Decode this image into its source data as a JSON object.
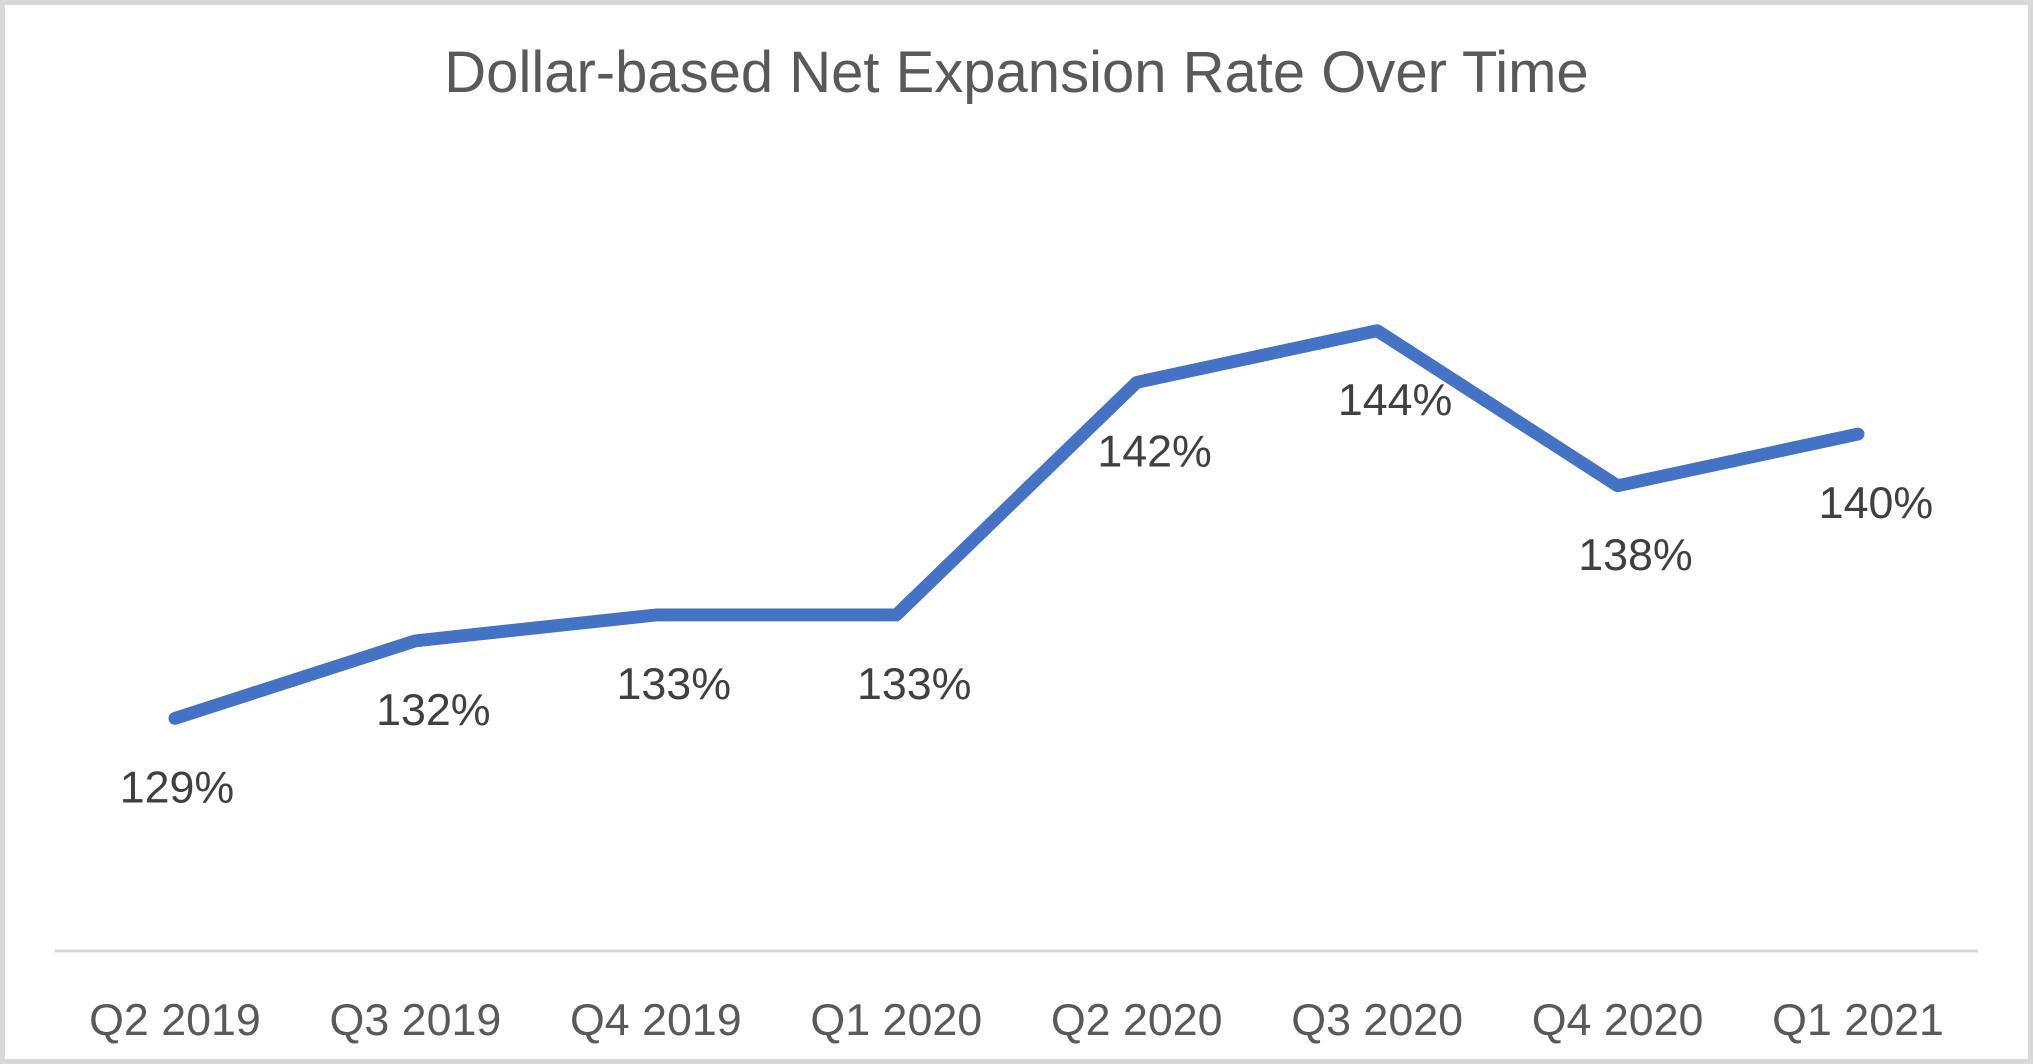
{
  "chart_data": {
    "type": "line",
    "title": "Dollar-based Net Expansion Rate Over Time",
    "categories": [
      "Q2 2019",
      "Q3 2019",
      "Q4 2019",
      "Q1 2020",
      "Q2 2020",
      "Q3 2020",
      "Q4 2020",
      "Q1 2021"
    ],
    "values": [
      129,
      132,
      133,
      133,
      142,
      144,
      138,
      140
    ],
    "data_labels": [
      "129%",
      "132%",
      "133%",
      "133%",
      "142%",
      "144%",
      "138%",
      "140%"
    ],
    "xlabel": "",
    "ylabel": "",
    "ylim": [
      120,
      152
    ],
    "grid": false,
    "legend": "none",
    "y_axis_visible": false,
    "colors": {
      "line": "#4472C4",
      "axis_line": "#D9D9D9",
      "data_label": "#404040",
      "tick_label": "#595959",
      "title": "#595959",
      "frame_border": "#D8D8D8",
      "background": "#FFFFFF"
    }
  }
}
